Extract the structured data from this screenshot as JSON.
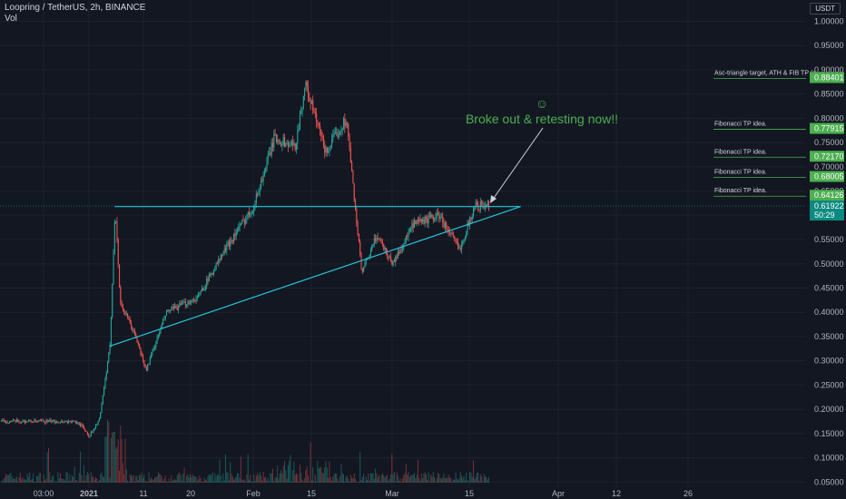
{
  "header": {
    "title": "Loopring / TetherUS, 2h, BINANCE",
    "volume_label": "Vol",
    "currency_badge": "USDT"
  },
  "annotation": {
    "smiley": "☺",
    "text": "Broke out & retesting now!!"
  },
  "price_badges": [
    {
      "note": "Asc-triangle target, ATH & FIB TP  (s",
      "value": "0.88401",
      "price": 0.88401
    },
    {
      "note": "Fibonacci TP idea.",
      "value": "0.77915",
      "price": 0.77915
    },
    {
      "note": "Fibonacci TP idea.",
      "value": "0.72170",
      "price": 0.7217
    },
    {
      "note": "Fibonacci TP idea.",
      "value": "0.68005",
      "price": 0.68005
    },
    {
      "note": "Fibonacci TP idea.",
      "value": "0.64126",
      "price": 0.64126
    }
  ],
  "current_price": {
    "value": "0.61922",
    "countdown": "50:29",
    "price": 0.61922
  },
  "chart_data": {
    "type": "candlestick",
    "symbol": "Loopring / TetherUS",
    "interval": "2h",
    "exchange": "BINANCE",
    "ylim": [
      0.05,
      1.0
    ],
    "y_ticks": [
      "1.00000",
      "0.95000",
      "0.90000",
      "0.85000",
      "0.80000",
      "0.75000",
      "0.70000",
      "0.65000",
      "0.60000",
      "0.55000",
      "0.50000",
      "0.45000",
      "0.40000",
      "0.35000",
      "0.30000",
      "0.25000",
      "0.20000",
      "0.15000",
      "0.10000",
      "0.05000"
    ],
    "x_ticks": [
      "03:00",
      "2021",
      "11",
      "20",
      "Feb",
      "15",
      "Mar",
      "15",
      "Apr",
      "12",
      "26"
    ],
    "price_path": [
      {
        "x": "Dec 28",
        "close": 0.175
      },
      {
        "x": "Dec 30",
        "close": 0.172
      },
      {
        "x": "Jan 1",
        "close": 0.145
      },
      {
        "x": "Jan 3",
        "close": 0.18
      },
      {
        "x": "Jan 5",
        "close": 0.33
      },
      {
        "x": "Jan 6",
        "close": 0.62
      },
      {
        "x": "Jan 7",
        "close": 0.42
      },
      {
        "x": "Jan 10",
        "close": 0.35
      },
      {
        "x": "Jan 12",
        "close": 0.28
      },
      {
        "x": "Jan 16",
        "close": 0.4
      },
      {
        "x": "Jan 22",
        "close": 0.43
      },
      {
        "x": "Jan 28",
        "close": 0.54
      },
      {
        "x": "Feb 2",
        "close": 0.62
      },
      {
        "x": "Feb 6",
        "close": 0.76
      },
      {
        "x": "Feb 10",
        "close": 0.74
      },
      {
        "x": "Feb 12",
        "close": 0.87
      },
      {
        "x": "Feb 16",
        "close": 0.73
      },
      {
        "x": "Feb 20",
        "close": 0.8
      },
      {
        "x": "Feb 23",
        "close": 0.48
      },
      {
        "x": "Feb 26",
        "close": 0.56
      },
      {
        "x": "Mar 1",
        "close": 0.5
      },
      {
        "x": "Mar 5",
        "close": 0.58
      },
      {
        "x": "Mar 10",
        "close": 0.6
      },
      {
        "x": "Mar 14",
        "close": 0.53
      },
      {
        "x": "Mar 17",
        "close": 0.62
      }
    ],
    "lines": [
      {
        "name": "resistance",
        "from": {
          "x": "Jan 6",
          "y": 0.618
        },
        "to": {
          "x": "Mar 26",
          "y": 0.618
        }
      },
      {
        "name": "ascending-support",
        "from": {
          "x": "Jan 5",
          "y": 0.33
        },
        "to": {
          "x": "Mar 26",
          "y": 0.618
        }
      }
    ],
    "colors": {
      "up": "#26a69a",
      "down": "#ef5350",
      "trendline": "#26c6da",
      "badge": "#4caf50",
      "current": "#0b8a80",
      "background": "#131722"
    }
  }
}
